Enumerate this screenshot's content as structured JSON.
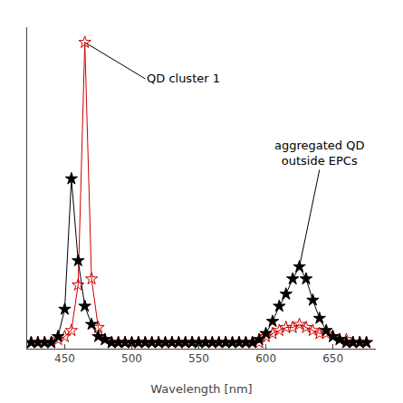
{
  "chart_data": {
    "type": "line",
    "xlabel": "Wavelength [nm]",
    "x": [
      425,
      430,
      435,
      440,
      445,
      450,
      455,
      460,
      465,
      470,
      475,
      480,
      485,
      490,
      495,
      500,
      505,
      510,
      515,
      520,
      525,
      530,
      535,
      540,
      545,
      550,
      555,
      560,
      565,
      570,
      575,
      580,
      585,
      590,
      595,
      600,
      605,
      610,
      615,
      620,
      625,
      630,
      635,
      640,
      645,
      650,
      655,
      660,
      665,
      670,
      675
    ],
    "series": [
      {
        "color": "#cc0000",
        "marker": "star-open",
        "values": [
          0.01,
          0.01,
          0.01,
          0.01,
          0.02,
          0.03,
          0.05,
          0.2,
          1.0,
          0.22,
          0.06,
          0.02,
          0.01,
          0.01,
          0.01,
          0.01,
          0.01,
          0.01,
          0.01,
          0.01,
          0.01,
          0.01,
          0.01,
          0.01,
          0.01,
          0.01,
          0.01,
          0.01,
          0.01,
          0.01,
          0.01,
          0.01,
          0.01,
          0.01,
          0.01,
          0.03,
          0.04,
          0.05,
          0.06,
          0.06,
          0.07,
          0.06,
          0.05,
          0.04,
          0.04,
          0.03,
          0.02,
          0.02,
          0.01,
          0.01,
          0.01
        ]
      },
      {
        "color": "#000000",
        "marker": "star",
        "values": [
          0.01,
          0.01,
          0.01,
          0.01,
          0.03,
          0.12,
          0.55,
          0.28,
          0.13,
          0.07,
          0.03,
          0.02,
          0.01,
          0.01,
          0.01,
          0.01,
          0.01,
          0.01,
          0.01,
          0.01,
          0.01,
          0.01,
          0.01,
          0.01,
          0.01,
          0.01,
          0.01,
          0.01,
          0.01,
          0.01,
          0.01,
          0.01,
          0.01,
          0.01,
          0.02,
          0.04,
          0.08,
          0.13,
          0.17,
          0.22,
          0.26,
          0.22,
          0.15,
          0.09,
          0.05,
          0.03,
          0.02,
          0.01,
          0.01,
          0.01,
          0.01
        ]
      }
    ],
    "xlim": [
      422,
      682
    ],
    "xticks": [
      450,
      500,
      550,
      600,
      650
    ],
    "ylim": [
      -0.01,
      1.05
    ],
    "tick_labels": "x",
    "grid": false,
    "annotations": [
      {
        "text": "QD cluster 1",
        "x": 465,
        "y": 1.0,
        "text_x": 510,
        "text_y": 0.88
      },
      {
        "text": "aggregated QD\noutside EPCs",
        "x": 625,
        "y": 0.26,
        "text_x": 640,
        "text_y": 0.58
      }
    ]
  }
}
